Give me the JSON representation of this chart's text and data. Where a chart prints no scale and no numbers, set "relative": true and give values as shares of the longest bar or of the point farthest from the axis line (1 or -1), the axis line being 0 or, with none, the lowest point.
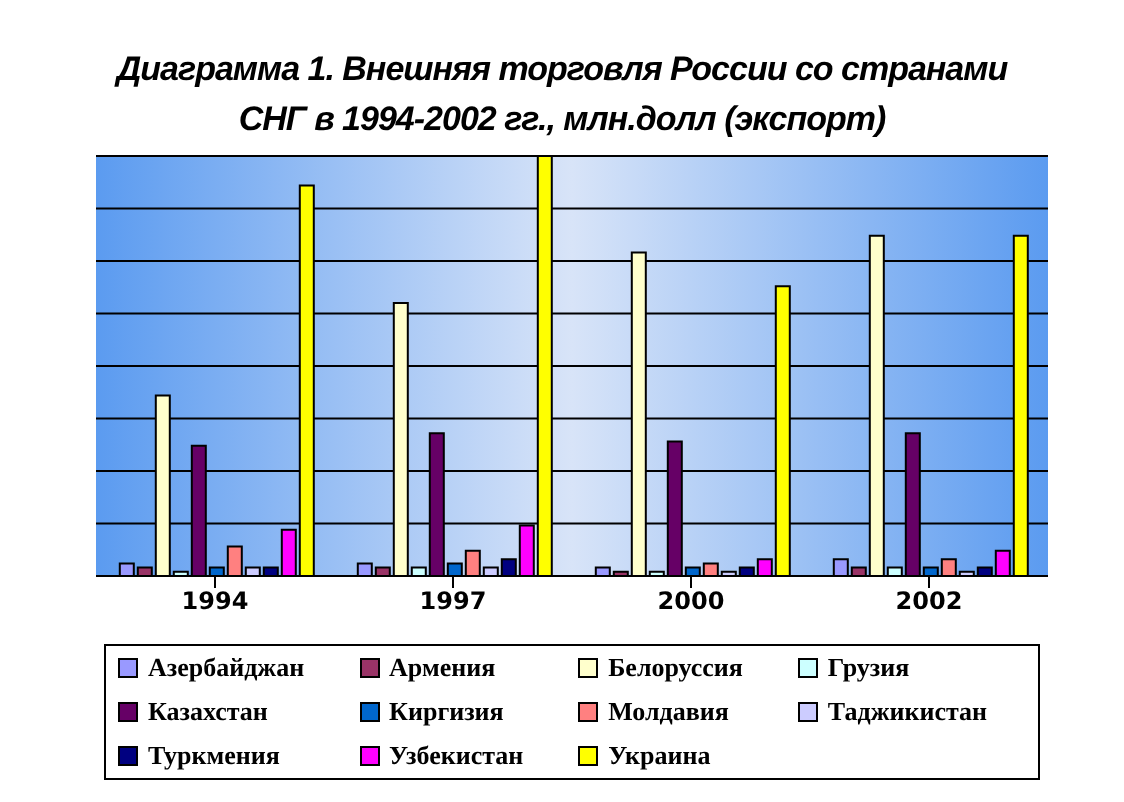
{
  "chart_data": {
    "type": "bar",
    "title": "Диаграмма 1. Внешняя торговля России со странами",
    "subtitle": "СНГ в 1994-2002 гг., млн.долл (экспорт)",
    "categories": [
      "1994",
      "1997",
      "2000",
      "2002"
    ],
    "relative": true,
    "grid": "y",
    "legend": "bottom",
    "series": [
      {
        "name": "Азербайджан",
        "color": "#9999ff",
        "values": [
          0.03,
          0.03,
          0.02,
          0.04
        ]
      },
      {
        "name": "Армения",
        "color": "#993366",
        "values": [
          0.02,
          0.02,
          0.01,
          0.02
        ]
      },
      {
        "name": "Белоруссия",
        "color": "#ffffcc",
        "values": [
          0.43,
          0.65,
          0.77,
          0.81
        ]
      },
      {
        "name": "Грузия",
        "color": "#ccffff",
        "values": [
          0.01,
          0.02,
          0.01,
          0.02
        ]
      },
      {
        "name": "Казахстан",
        "color": "#660066",
        "values": [
          0.31,
          0.34,
          0.32,
          0.34
        ]
      },
      {
        "name": "Киргизия",
        "color": "#0066cc",
        "values": [
          0.02,
          0.03,
          0.02,
          0.02
        ]
      },
      {
        "name": "Молдавия",
        "color": "#ff8080",
        "values": [
          0.07,
          0.06,
          0.03,
          0.04
        ]
      },
      {
        "name": "Таджикистан",
        "color": "#ccccff",
        "values": [
          0.02,
          0.02,
          0.01,
          0.01
        ]
      },
      {
        "name": "Туркмения",
        "color": "#000080",
        "values": [
          0.02,
          0.04,
          0.02,
          0.02
        ]
      },
      {
        "name": "Узбекистан",
        "color": "#ff00ff",
        "values": [
          0.11,
          0.12,
          0.04,
          0.06
        ]
      },
      {
        "name": "Украина",
        "color": "#ffff00",
        "values": [
          0.93,
          1,
          0.69,
          0.81
        ]
      }
    ]
  }
}
